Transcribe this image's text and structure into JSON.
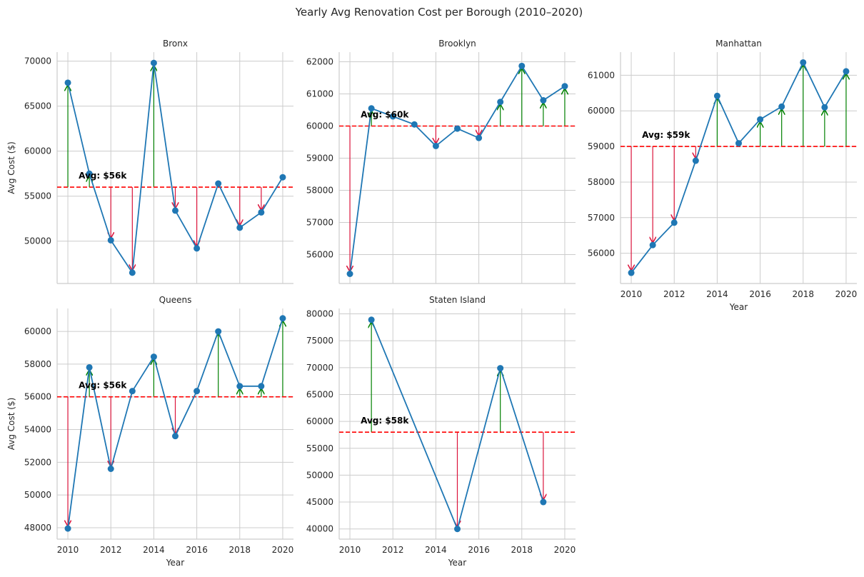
{
  "title": "Yearly Avg Renovation Cost per Borough (2010–2020)",
  "colors": {
    "line": "#1f77b4",
    "marker": "#1f77b4",
    "avg_line": "#ff0000",
    "above_arrow": "#008000",
    "below_arrow": "#dc143c",
    "grid": "#cccccc",
    "spine": "#cccccc",
    "background": "#ffffff"
  },
  "chart_data": [
    {
      "type": "line",
      "title": "Bronx",
      "xlabel": "",
      "ylabel": "Avg Cost ($)",
      "x": [
        2010,
        2011,
        2012,
        2013,
        2014,
        2015,
        2016,
        2017,
        2018,
        2019,
        2020
      ],
      "values": [
        67600,
        57500,
        50100,
        46500,
        69800,
        53400,
        49200,
        56400,
        51500,
        53200,
        57100
      ],
      "avg": 56000,
      "avg_label": "Avg: $56k",
      "xlim": [
        2009.5,
        2020.5
      ],
      "ylim": [
        45300,
        71000
      ],
      "yticks": [
        50000,
        55000,
        60000,
        65000,
        70000
      ],
      "xticks": [
        2010,
        2012,
        2014,
        2016,
        2018,
        2020
      ],
      "show_xtick_labels": false,
      "grid": true
    },
    {
      "type": "line",
      "title": "Brooklyn",
      "xlabel": "",
      "ylabel": "",
      "x": [
        2010,
        2011,
        2012,
        2013,
        2014,
        2015,
        2016,
        2017,
        2018,
        2019,
        2020
      ],
      "values": [
        55400,
        60550,
        60300,
        60050,
        59380,
        59920,
        59630,
        60750,
        61870,
        60800,
        61240
      ],
      "avg": 60000,
      "avg_label": "Avg: $60k",
      "xlim": [
        2009.5,
        2020.5
      ],
      "ylim": [
        55100,
        62300
      ],
      "yticks": [
        56000,
        57000,
        58000,
        59000,
        60000,
        61000,
        62000
      ],
      "xticks": [
        2010,
        2012,
        2014,
        2016,
        2018,
        2020
      ],
      "show_xtick_labels": false,
      "grid": true
    },
    {
      "type": "line",
      "title": "Manhattan",
      "xlabel": "Year",
      "ylabel": "",
      "x": [
        2010,
        2011,
        2012,
        2013,
        2014,
        2015,
        2016,
        2017,
        2018,
        2019,
        2020
      ],
      "values": [
        55450,
        56230,
        56860,
        58600,
        60420,
        59090,
        59760,
        60120,
        61360,
        60100,
        61110
      ],
      "avg": 59000,
      "avg_label": "Avg: $59k",
      "xlim": [
        2009.5,
        2020.5
      ],
      "ylim": [
        55150,
        61650
      ],
      "yticks": [
        56000,
        57000,
        58000,
        59000,
        60000,
        61000
      ],
      "xticks": [
        2010,
        2012,
        2014,
        2016,
        2018,
        2020
      ],
      "show_xtick_labels": true,
      "grid": true
    },
    {
      "type": "line",
      "title": "Queens",
      "xlabel": "Year",
      "ylabel": "Avg Cost ($)",
      "x": [
        2010,
        2011,
        2012,
        2013,
        2014,
        2015,
        2016,
        2017,
        2018,
        2019,
        2020
      ],
      "values": [
        47950,
        57800,
        51600,
        56350,
        58450,
        53600,
        56350,
        60000,
        56650,
        56650,
        60800
      ],
      "avg": 56000,
      "avg_label": "Avg: $56k",
      "xlim": [
        2009.5,
        2020.5
      ],
      "ylim": [
        47300,
        61400
      ],
      "yticks": [
        48000,
        50000,
        52000,
        54000,
        56000,
        58000,
        60000
      ],
      "xticks": [
        2010,
        2012,
        2014,
        2016,
        2018,
        2020
      ],
      "show_xtick_labels": true,
      "grid": true
    },
    {
      "type": "line",
      "title": "Staten Island",
      "xlabel": "Year",
      "ylabel": "",
      "x": [
        2011,
        2015,
        2017,
        2019
      ],
      "values": [
        78900,
        40000,
        69900,
        45000
      ],
      "avg": 58000,
      "avg_label": "Avg: $58k",
      "xlim": [
        2009.5,
        2020.5
      ],
      "ylim": [
        38100,
        81000
      ],
      "yticks": [
        40000,
        45000,
        50000,
        55000,
        60000,
        65000,
        70000,
        75000,
        80000
      ],
      "xticks": [
        2010,
        2012,
        2014,
        2016,
        2018,
        2020
      ],
      "show_xtick_labels": true,
      "grid": true
    }
  ]
}
